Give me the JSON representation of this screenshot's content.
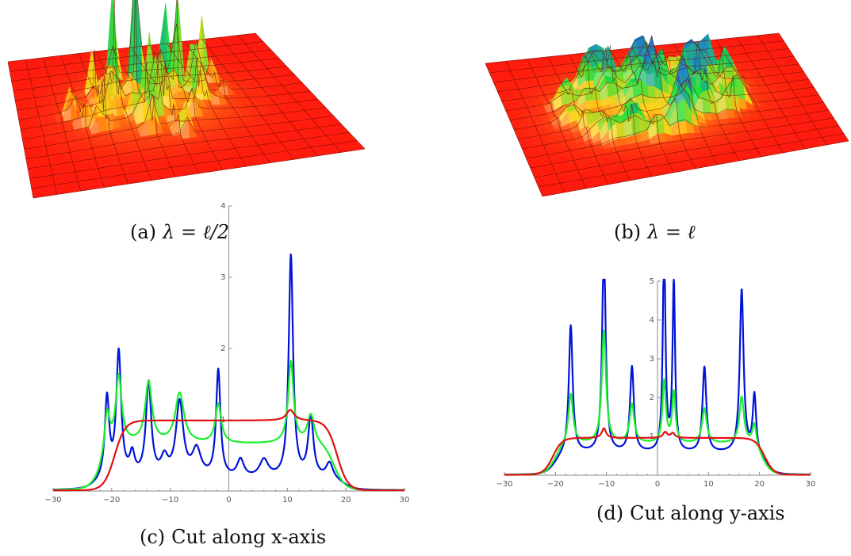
{
  "figure": {
    "panels": [
      {
        "id": "a",
        "tag": "(a)",
        "math": "λ = ℓ/2",
        "caption_text": "",
        "kind": "surface-3d"
      },
      {
        "id": "b",
        "tag": "(b)",
        "math": "λ = ℓ",
        "caption_text": "",
        "kind": "surface-3d"
      },
      {
        "id": "c",
        "tag": "(c)",
        "math": "",
        "caption_text": "Cut along x-axis",
        "kind": "line"
      },
      {
        "id": "d",
        "tag": "(d)",
        "math": "",
        "caption_text": "Cut along y-axis",
        "kind": "line"
      }
    ]
  },
  "colors": {
    "surface_base": "#ff1a0d",
    "surface_mid": "#ffd21a",
    "surface_high": "#1ee23a",
    "surface_peak": "#1e7fd0",
    "grid_line": "#6a0b05",
    "blue": "#0014d8",
    "green": "#19f02a",
    "red": "#e01010",
    "axis": "#8a8a8a"
  },
  "surfaces": [
    {
      "id": "a",
      "grid_divisions": 14,
      "spikiness": "high"
    },
    {
      "id": "b",
      "grid_divisions": 14,
      "spikiness": "low"
    }
  ],
  "chart_data": [
    {
      "type": "line",
      "panel": "c",
      "title": "",
      "xlabel": "",
      "ylabel": "",
      "xlim": [
        -30,
        30
      ],
      "ylim": [
        0,
        4
      ],
      "xticks": [
        -30,
        -20,
        -10,
        0,
        10,
        20,
        30
      ],
      "yticks": [
        1,
        2,
        3,
        4
      ],
      "grid": false,
      "legend": "none",
      "series": [
        {
          "color": "blue",
          "peaks": [
            {
              "x": -20.8,
              "h": 1.12,
              "w": 0.45
            },
            {
              "x": -18.8,
              "h": 1.75,
              "w": 0.5
            },
            {
              "x": -16.5,
              "h": 0.3,
              "w": 0.5
            },
            {
              "x": -13.7,
              "h": 1.32,
              "w": 0.55
            },
            {
              "x": -11.0,
              "h": 0.25,
              "w": 0.7
            },
            {
              "x": -8.4,
              "h": 1.05,
              "w": 0.75
            },
            {
              "x": -5.5,
              "h": 0.38,
              "w": 0.9
            },
            {
              "x": -1.8,
              "h": 1.5,
              "w": 0.45
            },
            {
              "x": 2.0,
              "h": 0.25,
              "w": 0.7
            },
            {
              "x": 6.0,
              "h": 0.25,
              "w": 0.9
            },
            {
              "x": 10.6,
              "h": 3.12,
              "w": 0.45
            },
            {
              "x": 14.0,
              "h": 0.85,
              "w": 0.55
            },
            {
              "x": 17.2,
              "h": 0.22,
              "w": 0.7
            }
          ],
          "envelope": {
            "left": -22.5,
            "right": 19.5,
            "level": 0.15
          }
        },
        {
          "color": "green",
          "peaks": [
            {
              "x": -20.8,
              "h": 0.6,
              "w": 0.55
            },
            {
              "x": -18.8,
              "h": 0.95,
              "w": 0.6
            },
            {
              "x": -13.7,
              "h": 0.85,
              "w": 0.7
            },
            {
              "x": -8.4,
              "h": 0.7,
              "w": 0.9
            },
            {
              "x": -1.8,
              "h": 0.55,
              "w": 0.6
            },
            {
              "x": 10.6,
              "h": 1.15,
              "w": 0.55
            },
            {
              "x": 14.0,
              "h": 0.4,
              "w": 0.7
            }
          ],
          "envelope": {
            "left": -21.5,
            "right": 18.0,
            "level": 0.65
          }
        },
        {
          "color": "red",
          "peaks": [
            {
              "x": 10.5,
              "h": 0.15,
              "w": 0.8
            }
          ],
          "envelope": {
            "left": -19.5,
            "right": 18.5,
            "level": 0.98
          }
        }
      ]
    },
    {
      "type": "line",
      "panel": "d",
      "title": "",
      "xlabel": "",
      "ylabel": "",
      "xlim": [
        -30,
        30
      ],
      "ylim": [
        0,
        5
      ],
      "xticks": [
        -30,
        -20,
        -10,
        0,
        10,
        20,
        30
      ],
      "yticks": [
        1,
        2,
        3,
        4,
        5
      ],
      "grid": false,
      "legend": "none",
      "series": [
        {
          "color": "blue",
          "peaks": [
            {
              "x": -17.0,
              "h": 3.3,
              "w": 0.45
            },
            {
              "x": -10.5,
              "h": 5.5,
              "w": 0.4
            },
            {
              "x": -5.0,
              "h": 2.2,
              "w": 0.45
            },
            {
              "x": 1.3,
              "h": 5.5,
              "w": 0.3
            },
            {
              "x": 3.2,
              "h": 4.4,
              "w": 0.3
            },
            {
              "x": 9.2,
              "h": 2.2,
              "w": 0.45
            },
            {
              "x": 16.5,
              "h": 4.2,
              "w": 0.45
            },
            {
              "x": 19.0,
              "h": 1.5,
              "w": 0.4
            }
          ],
          "envelope": {
            "left": -20.0,
            "right": 21.0,
            "level": 0.55
          }
        },
        {
          "color": "green",
          "peaks": [
            {
              "x": -17.0,
              "h": 1.3,
              "w": 0.55
            },
            {
              "x": -10.5,
              "h": 2.9,
              "w": 0.5
            },
            {
              "x": -5.0,
              "h": 1.0,
              "w": 0.55
            },
            {
              "x": 1.3,
              "h": 1.6,
              "w": 0.4
            },
            {
              "x": 3.2,
              "h": 1.3,
              "w": 0.4
            },
            {
              "x": 9.2,
              "h": 0.9,
              "w": 0.55
            },
            {
              "x": 16.5,
              "h": 1.2,
              "w": 0.55
            },
            {
              "x": 19.0,
              "h": 0.6,
              "w": 0.5
            }
          ],
          "envelope": {
            "left": -20.0,
            "right": 20.5,
            "level": 0.8
          }
        },
        {
          "color": "red",
          "peaks": [
            {
              "x": -10.5,
              "h": 0.25,
              "w": 0.5
            },
            {
              "x": 1.5,
              "h": 0.15,
              "w": 0.5
            },
            {
              "x": 3.0,
              "h": 0.12,
              "w": 0.5
            }
          ],
          "envelope": {
            "left": -20.5,
            "right": 21.0,
            "level": 0.95
          }
        }
      ]
    }
  ]
}
